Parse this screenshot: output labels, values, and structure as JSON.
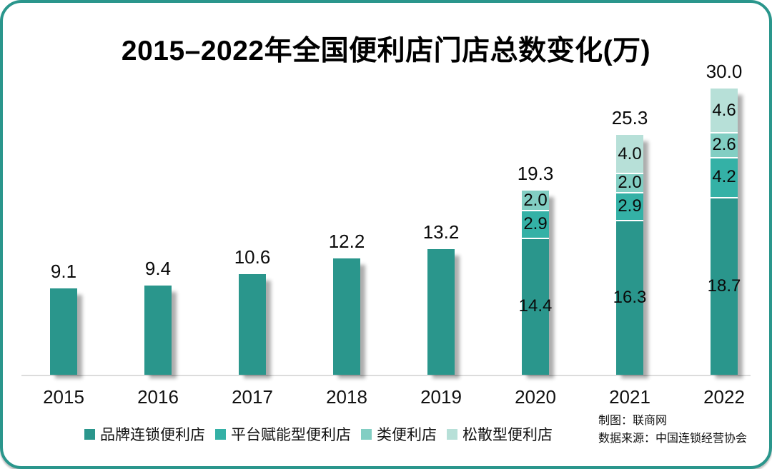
{
  "colors": {
    "card_border": "#2a968c",
    "baseline": "#dcdcdc",
    "text": "#111111",
    "bar_shadow": "rgba(0,0,0,0.32)"
  },
  "credits": {
    "line1": "制图：联商网",
    "line2": "数据来源：中国连锁经营协会"
  },
  "chart_data": {
    "type": "bar",
    "stacked": true,
    "title": "2015–2022年全国便利店门店总数变化(万)",
    "unit": "万",
    "categories": [
      "2015",
      "2016",
      "2017",
      "2018",
      "2019",
      "2020",
      "2021",
      "2022"
    ],
    "series": [
      {
        "name": "品牌连锁便利店",
        "color": "#2a968c",
        "values": [
          9.1,
          9.4,
          10.6,
          12.2,
          13.2,
          14.4,
          16.3,
          18.7
        ]
      },
      {
        "name": "平台赋能型便利店",
        "color": "#34b1a6",
        "values": [
          null,
          null,
          null,
          null,
          null,
          2.9,
          2.9,
          4.2
        ]
      },
      {
        "name": "类便利店",
        "color": "#82cec3",
        "values": [
          null,
          null,
          null,
          null,
          null,
          2.0,
          2.0,
          2.6
        ]
      },
      {
        "name": "松散型便利店",
        "color": "#b7e0d8",
        "values": [
          null,
          null,
          null,
          null,
          null,
          null,
          4.0,
          4.6
        ]
      }
    ],
    "totals": [
      9.1,
      9.4,
      10.6,
      12.2,
      13.2,
      19.3,
      25.3,
      30.0
    ],
    "ylim": [
      0,
      31
    ],
    "grid": false,
    "legend_position": "bottom",
    "xlabel": "",
    "ylabel": ""
  }
}
